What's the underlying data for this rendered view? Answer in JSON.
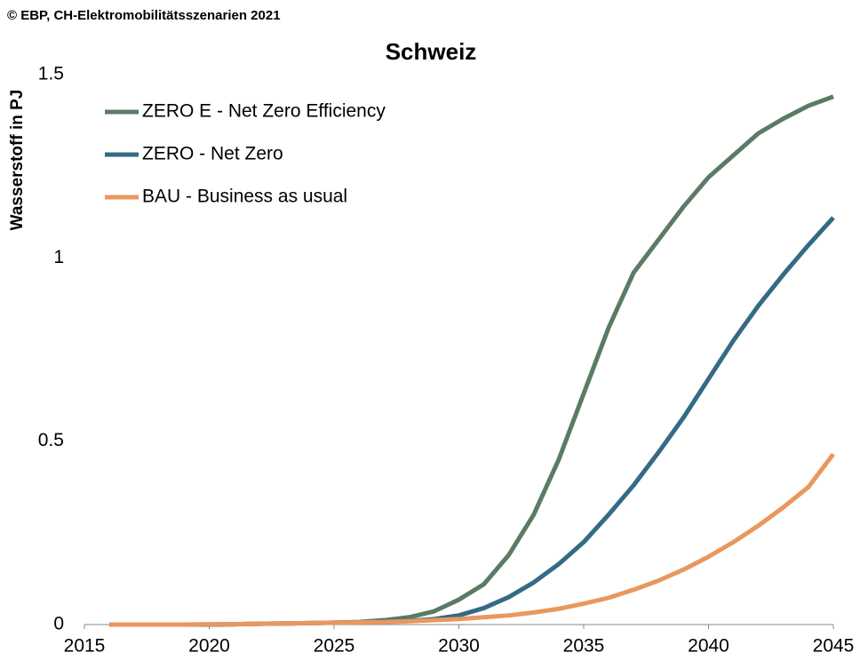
{
  "chart_data": {
    "type": "line",
    "source": "© EBP, CH-Elektromobilitätsszenarien 2021",
    "title": "Schweiz",
    "ylabel": "Wasserstoff in PJ",
    "x": [
      2016,
      2017,
      2018,
      2019,
      2020,
      2021,
      2022,
      2023,
      2024,
      2025,
      2026,
      2027,
      2028,
      2029,
      2030,
      2031,
      2032,
      2033,
      2034,
      2035,
      2036,
      2037,
      2038,
      2039,
      2040,
      2041,
      2042,
      2043,
      2044,
      2045
    ],
    "series": [
      {
        "name": "ZERO E - Net Zero Efficiency",
        "color": "#5b7b64",
        "values": [
          0,
          0,
          0,
          0,
          0,
          0.001,
          0.002,
          0.003,
          0.004,
          0.005,
          0.007,
          0.012,
          0.02,
          0.036,
          0.068,
          0.11,
          0.19,
          0.3,
          0.45,
          0.63,
          0.81,
          0.96,
          1.05,
          1.14,
          1.22,
          1.28,
          1.34,
          1.38,
          1.415,
          1.44
        ]
      },
      {
        "name": "ZERO - Net Zero",
        "color": "#356a86",
        "values": [
          0,
          0,
          0,
          0,
          0,
          0.001,
          0.002,
          0.003,
          0.004,
          0.005,
          0.006,
          0.008,
          0.01,
          0.015,
          0.025,
          0.045,
          0.075,
          0.115,
          0.165,
          0.225,
          0.3,
          0.38,
          0.47,
          0.565,
          0.67,
          0.775,
          0.87,
          0.955,
          1.035,
          1.11
        ]
      },
      {
        "name": "BAU - Business as usual",
        "color": "#e9975f",
        "values": [
          0,
          0,
          0,
          0,
          0.001,
          0.001,
          0.002,
          0.003,
          0.004,
          0.005,
          0.006,
          0.007,
          0.009,
          0.012,
          0.015,
          0.02,
          0.025,
          0.033,
          0.043,
          0.057,
          0.073,
          0.095,
          0.12,
          0.15,
          0.185,
          0.225,
          0.27,
          0.32,
          0.375,
          0.465
        ]
      }
    ],
    "xlim": [
      2015,
      2045
    ],
    "xticks": [
      2015,
      2020,
      2025,
      2030,
      2035,
      2040,
      2045
    ],
    "ylim": [
      0,
      1.5
    ],
    "yticks": [
      0,
      0.5,
      1,
      1.5
    ],
    "grid": false,
    "legend": "upper left"
  }
}
